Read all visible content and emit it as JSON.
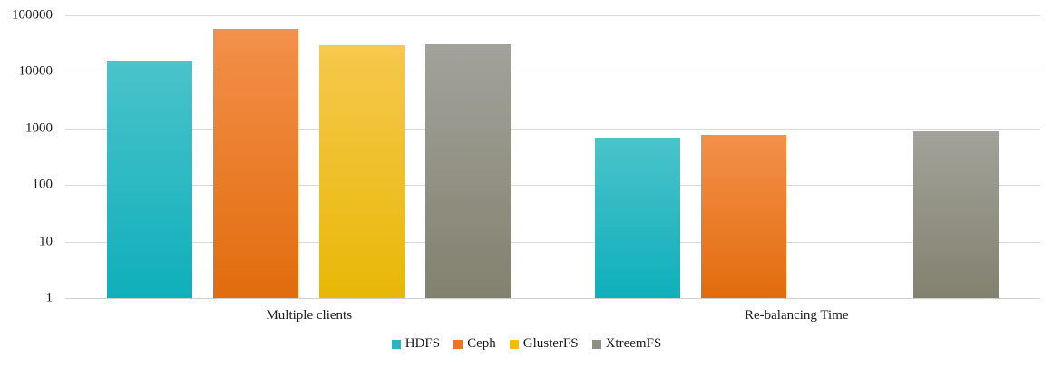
{
  "chart_data": {
    "type": "bar",
    "title": "",
    "xlabel": "",
    "ylabel": "",
    "y_scale": "log",
    "ylim": [
      1,
      100000
    ],
    "grid": true,
    "legend_position": "bottom",
    "categories": [
      "Multiple clients",
      "Re-balancing Time"
    ],
    "y_ticks": [
      "1",
      "10",
      "100",
      "1000",
      "10000",
      "100000"
    ],
    "series": [
      {
        "name": "HDFS",
        "values": [
          16000,
          700
        ],
        "color_top": "#4BC3CA",
        "color_bottom": "#0EAFBB",
        "legend_color": "#2AB6C0"
      },
      {
        "name": "Ceph",
        "values": [
          57000,
          780
        ],
        "color_top": "#F3904B",
        "color_bottom": "#E26C0D",
        "legend_color": "#ED7423"
      },
      {
        "name": "GlusterFS",
        "values": [
          30000,
          null
        ],
        "color_top": "#F6C84D",
        "color_bottom": "#E8B806",
        "legend_color": "#EFBF04"
      },
      {
        "name": "XtreemFS",
        "values": [
          31000,
          900
        ],
        "color_top": "#A3A29A",
        "color_bottom": "#82816F",
        "legend_color": "#8F8E86"
      }
    ],
    "axis_colors": {
      "gridline": "#d9d9d9",
      "text": "#1a1a1a"
    }
  }
}
